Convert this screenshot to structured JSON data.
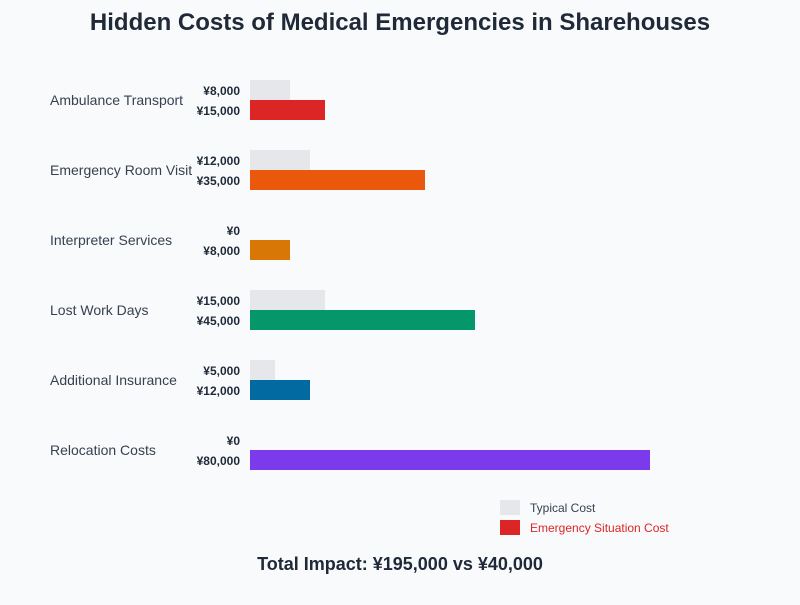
{
  "chart_data": {
    "type": "bar",
    "orientation": "horizontal",
    "title": "Hidden Costs of Medical Emergencies in Sharehouses",
    "categories": [
      "Ambulance Transport",
      "Emergency Room Visit",
      "Interpreter Services",
      "Lost Work Days",
      "Additional Insurance",
      "Relocation Costs"
    ],
    "series": [
      {
        "name": "Typical Cost",
        "values": [
          8000,
          12000,
          0,
          15000,
          5000,
          0
        ],
        "labels": [
          "¥8,000",
          "¥12,000",
          "¥0",
          "¥15,000",
          "¥5,000",
          "¥0"
        ],
        "color": "#e5e7eb"
      },
      {
        "name": "Emergency Situation Cost",
        "values": [
          15000,
          35000,
          8000,
          45000,
          12000,
          80000
        ],
        "labels": [
          "¥15,000",
          "¥35,000",
          "¥8,000",
          "¥45,000",
          "¥12,000",
          "¥80,000"
        ],
        "colors": [
          "#dc2626",
          "#ea580c",
          "#d97706",
          "#059669",
          "#0369a1",
          "#7c3aed"
        ]
      }
    ],
    "xlim": [
      0,
      80000
    ],
    "grid": false,
    "legend": {
      "position": "bottom-right",
      "typical_label": "Typical Cost",
      "emergency_label": "Emergency Situation Cost",
      "typical_color": "#e5e7eb",
      "emergency_color": "#dc2626"
    },
    "footer": "Total Impact: ¥195,000 vs ¥40,000"
  }
}
